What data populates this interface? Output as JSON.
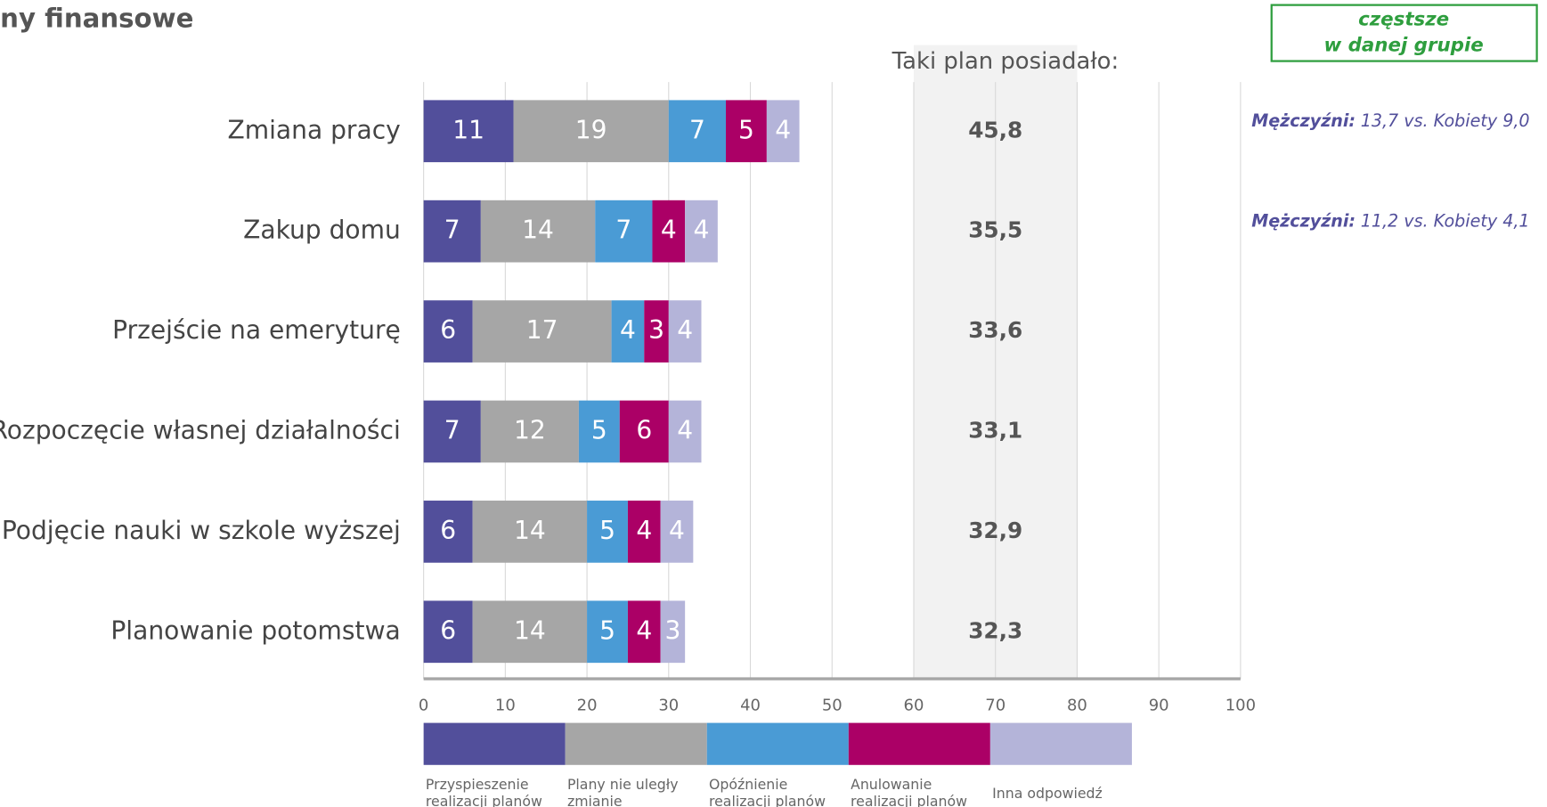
{
  "chart_data": {
    "type": "stacked-barh",
    "title": "ny finansowe",
    "categories": [
      "Zmiana pracy",
      "Zakup domu",
      "Przejście na emeryturę",
      "Rozpoczęcie własnej działalności",
      "Podjęcie nauki w szkole wyższej",
      "Planowanie potomstwa"
    ],
    "series": [
      {
        "name": "Przyspieszenie realizacji planów",
        "color": "#524f9b",
        "values": [
          11,
          7,
          6,
          7,
          6,
          6
        ]
      },
      {
        "name": "Plany nie uległy zmianie",
        "color": "#a6a6a6",
        "values": [
          19,
          14,
          17,
          12,
          14,
          14
        ]
      },
      {
        "name": "Opóźnienie realizacji planów",
        "color": "#4a9bd5",
        "values": [
          7,
          7,
          4,
          5,
          5,
          5
        ]
      },
      {
        "name": "Anulowanie realizacji planów",
        "color": "#ab0066",
        "values": [
          5,
          4,
          3,
          6,
          4,
          4
        ]
      },
      {
        "name": "Inna odpowiedź",
        "color": "#b4b4d9",
        "values": [
          4,
          4,
          4,
          4,
          4,
          3
        ]
      }
    ],
    "xlim": [
      0,
      100
    ],
    "xticks": [
      0,
      10,
      20,
      30,
      40,
      50,
      60,
      70,
      80,
      90,
      100
    ],
    "grid": true,
    "totals_header": "Taki plan posiadało:",
    "totals": [
      45.8,
      35.5,
      33.6,
      33.1,
      32.9,
      32.3
    ],
    "totals_labels": [
      "45,8",
      "35,5",
      "33,6",
      "33,1",
      "32,9",
      "32,3"
    ],
    "note_box": [
      "częstsze",
      "w danej grupie"
    ],
    "annotations": [
      {
        "row": 0,
        "bold": "Mężczyźni:",
        "text": "13,7 vs. Kobiety 9,0"
      },
      {
        "row": 1,
        "bold": "Mężczyźni:",
        "text": "11,2 vs. Kobiety 4,1"
      }
    ]
  }
}
